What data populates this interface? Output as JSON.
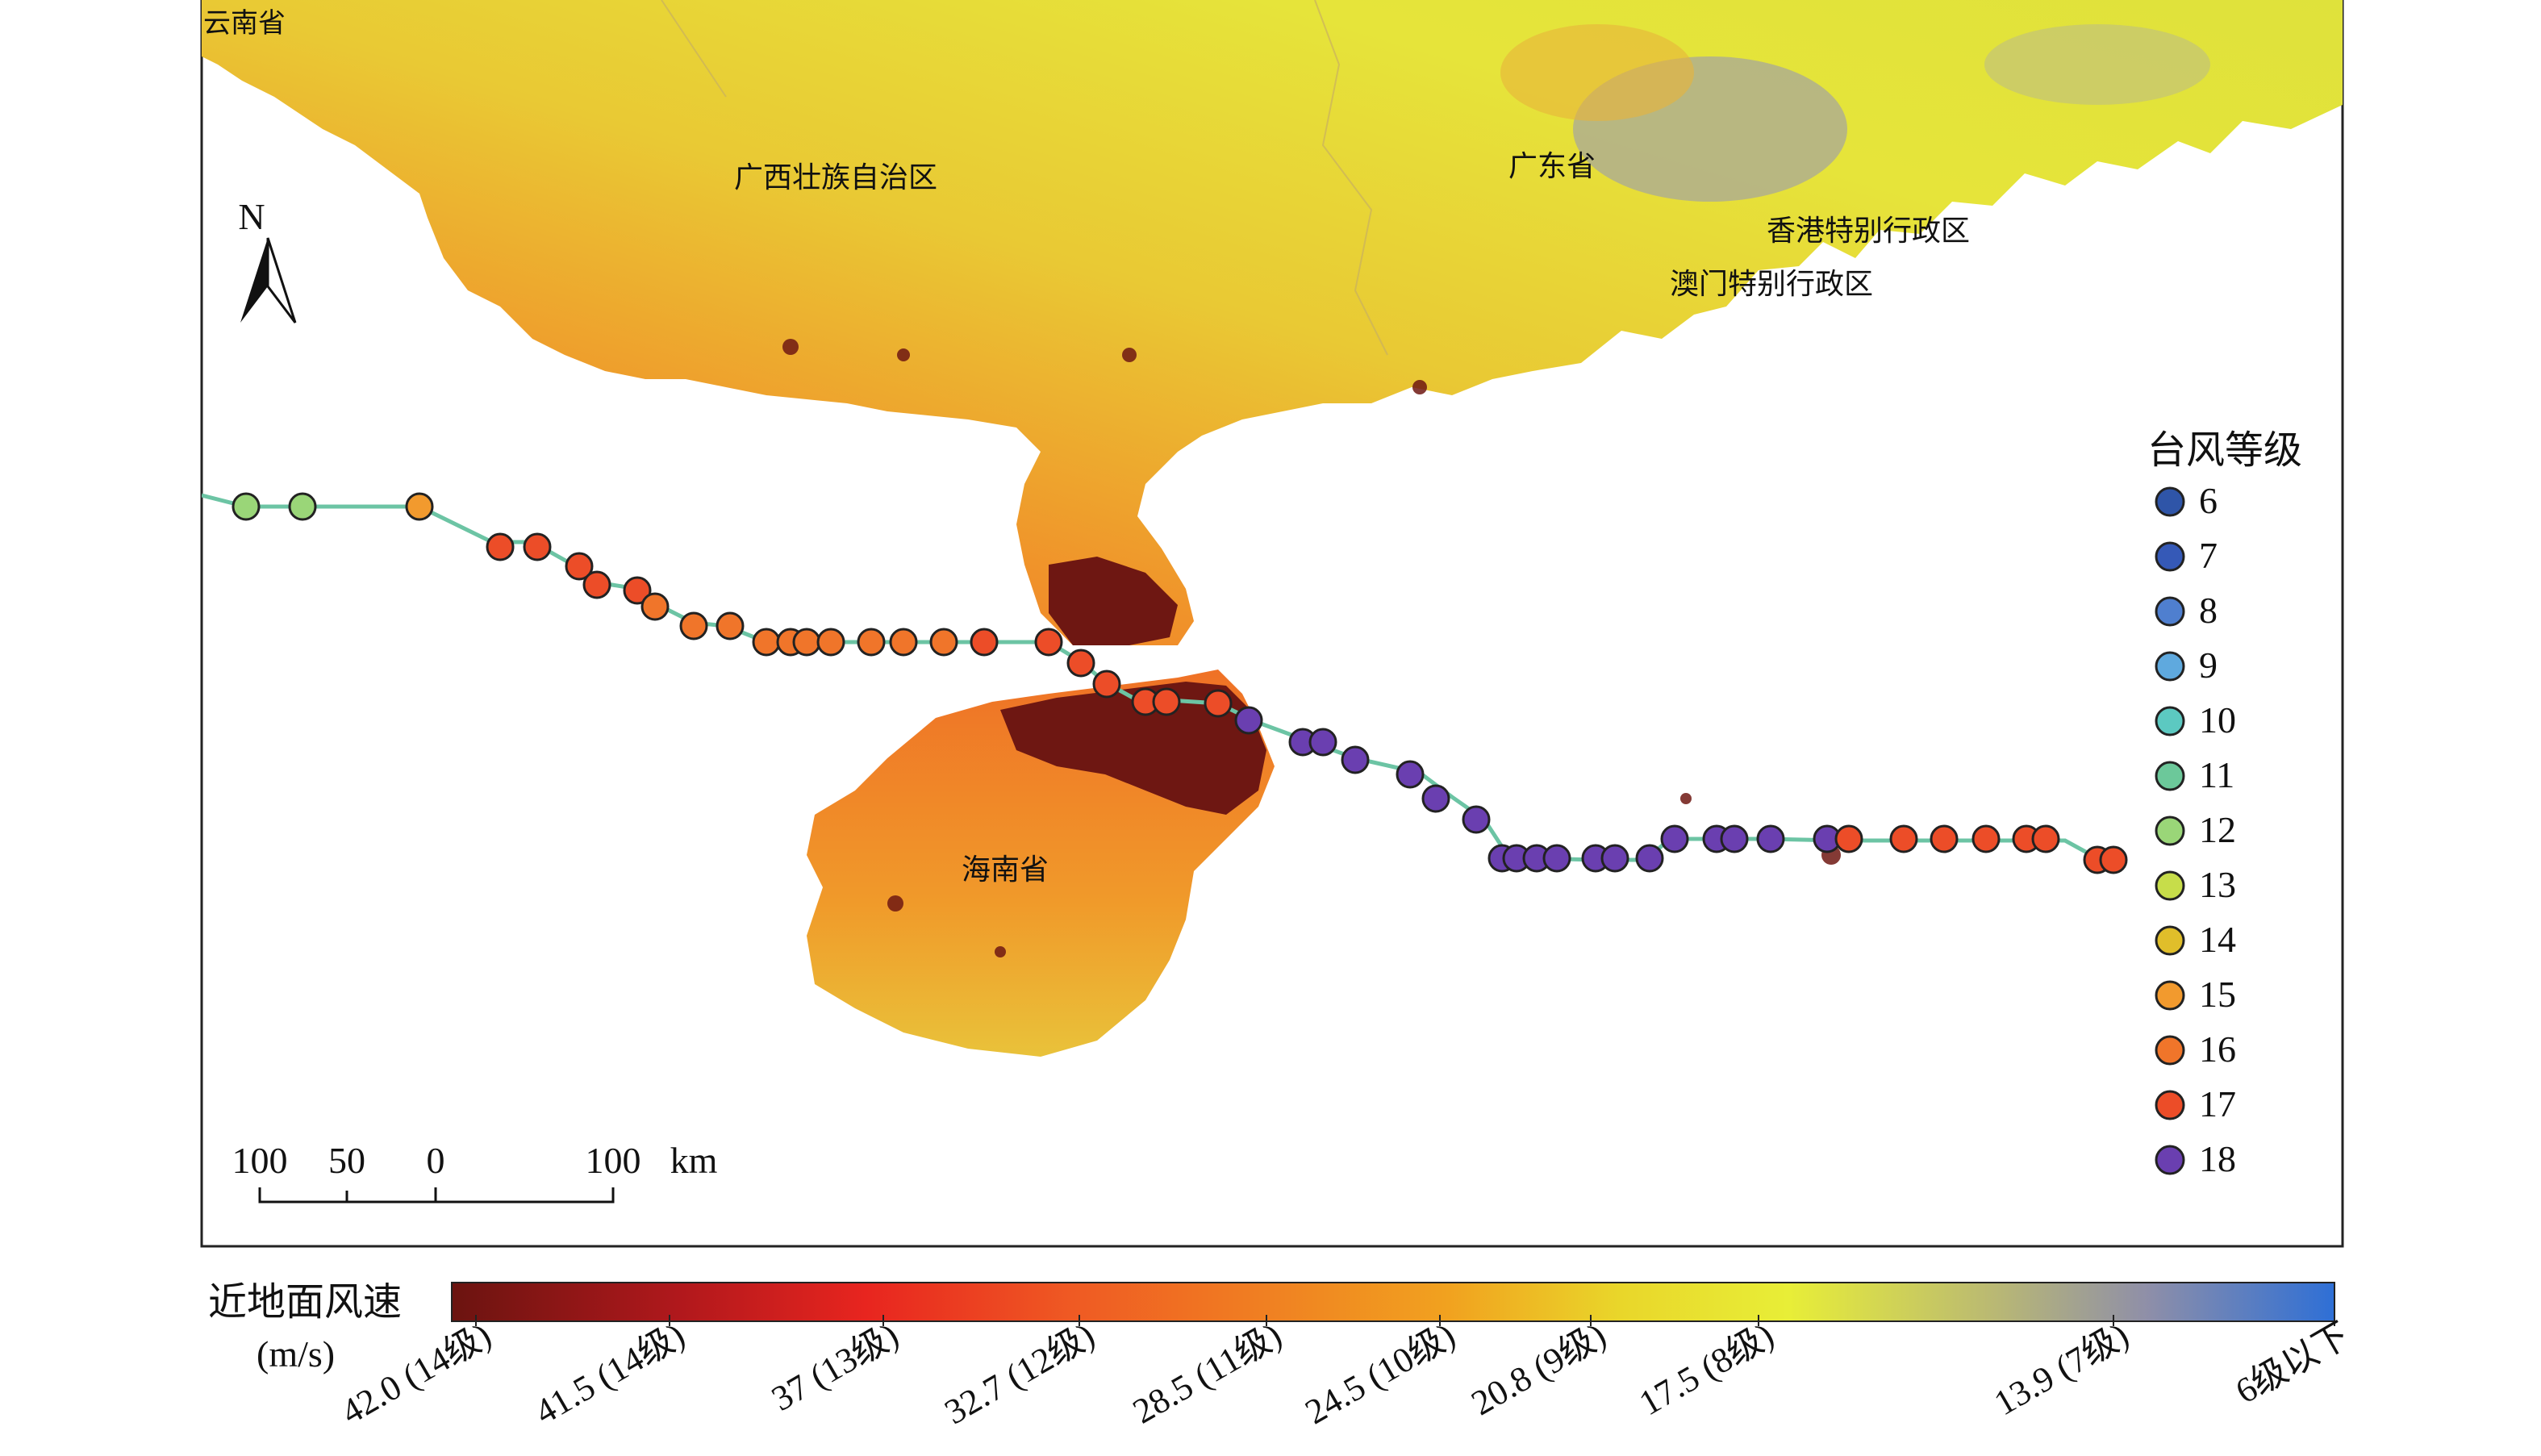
{
  "map": {
    "place_labels": [
      {
        "id": "yunnan",
        "text": "云南省"
      },
      {
        "id": "guangxi",
        "text": "广西壮族自治区"
      },
      {
        "id": "guangdong",
        "text": "广东省"
      },
      {
        "id": "hongkong",
        "text": "香港特别行政区"
      },
      {
        "id": "macau",
        "text": "澳门特别行政区"
      },
      {
        "id": "hainan",
        "text": "海南省"
      }
    ],
    "north_arrow_label": "N",
    "scale_bar": {
      "labels": [
        "100",
        "50",
        "0",
        "100"
      ],
      "unit": "km"
    },
    "track_line_color": "#6cc4a4"
  },
  "legend": {
    "title": "台风等级",
    "levels": [
      {
        "label": "6",
        "color": "#2f55a8"
      },
      {
        "label": "7",
        "color": "#3559b7"
      },
      {
        "label": "8",
        "color": "#4f7fcf"
      },
      {
        "label": "9",
        "color": "#5fa9de"
      },
      {
        "label": "10",
        "color": "#5cc9c1"
      },
      {
        "label": "11",
        "color": "#6cc89a"
      },
      {
        "label": "12",
        "color": "#9ad678"
      },
      {
        "label": "13",
        "color": "#c7dd4a"
      },
      {
        "label": "14",
        "color": "#e0be2a"
      },
      {
        "label": "15",
        "color": "#f29a2e"
      },
      {
        "label": "16",
        "color": "#f0752a"
      },
      {
        "label": "17",
        "color": "#ec4d28"
      },
      {
        "label": "18",
        "color": "#6a3fb0"
      }
    ],
    "track_levels": [
      12,
      12,
      15,
      17,
      17,
      17,
      17,
      17,
      16,
      16,
      16,
      16,
      16,
      16,
      16,
      16,
      16,
      16,
      17,
      17,
      17,
      17,
      17,
      17,
      17,
      18,
      18,
      18,
      18,
      18,
      18,
      18,
      18,
      18,
      18,
      18,
      18,
      18,
      18,
      18,
      18,
      18,
      18,
      18,
      17,
      17,
      17,
      17,
      17,
      17,
      17,
      17
    ]
  },
  "colorbar": {
    "title_line1": "近地面风速",
    "title_line2": "(m/s)",
    "tick_labels": [
      "42.0 (14级)",
      "41.5 (14级)",
      "37 (13级)",
      "32.7 (12级)",
      "28.5 (11级)",
      "24.5 (10级)",
      "20.8 (9级)",
      "17.5 (8级)",
      "13.9 (7级)",
      "6级以下"
    ],
    "gradient_colors": [
      "#6b1410",
      "#b0181c",
      "#e8251f",
      "#ef5a23",
      "#f07f22",
      "#f1a21f",
      "#e9d62a",
      "#e8ee37",
      "#b9b874",
      "#8f8fa8",
      "#2e6fd6"
    ]
  },
  "raster_colors": {
    "dark_red": "#6e1712",
    "orange": "#ef8a2a",
    "yellow": "#e6e43a",
    "gray": "#a8a89a"
  }
}
